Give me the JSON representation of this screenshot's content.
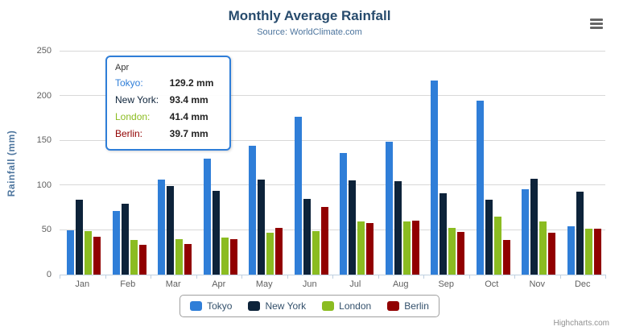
{
  "header": {
    "title": "Monthly Average Rainfall",
    "subtitle": "Source: WorldClimate.com"
  },
  "axes": {
    "y_title": "Rainfall (mm)",
    "y_ticks": [
      0,
      50,
      100,
      150,
      200,
      250
    ]
  },
  "chart_data": {
    "type": "bar",
    "title": "Monthly Average Rainfall",
    "subtitle": "Source: WorldClimate.com",
    "xlabel": "",
    "ylabel": "Rainfall (mm)",
    "ylim": [
      0,
      250
    ],
    "grid": true,
    "legend_position": "bottom",
    "categories": [
      "Jan",
      "Feb",
      "Mar",
      "Apr",
      "May",
      "Jun",
      "Jul",
      "Aug",
      "Sep",
      "Oct",
      "Nov",
      "Dec"
    ],
    "series": [
      {
        "name": "Tokyo",
        "color": "#2f7ed8",
        "values": [
          49.9,
          71.5,
          106.4,
          129.2,
          144.0,
          176.0,
          135.6,
          148.5,
          216.4,
          194.1,
          95.6,
          54.4
        ]
      },
      {
        "name": "New York",
        "color": "#0d233a",
        "values": [
          83.6,
          78.8,
          98.5,
          93.4,
          106.0,
          84.5,
          105.0,
          104.3,
          91.2,
          83.5,
          106.6,
          92.3
        ]
      },
      {
        "name": "London",
        "color": "#8bbc21",
        "values": [
          48.9,
          38.8,
          39.3,
          41.4,
          47.0,
          48.3,
          59.0,
          59.6,
          52.4,
          65.2,
          59.3,
          51.2
        ]
      },
      {
        "name": "Berlin",
        "color": "#910000",
        "values": [
          42.4,
          33.2,
          34.5,
          39.7,
          52.6,
          75.5,
          57.4,
          60.4,
          47.6,
          39.1,
          46.8,
          51.1
        ]
      }
    ]
  },
  "tooltip": {
    "header": "Apr",
    "rows": [
      {
        "label": "Tokyo:",
        "value": "129.2 mm",
        "color": "#2f7ed8"
      },
      {
        "label": "New York:",
        "value": "93.4 mm",
        "color": "#0d233a"
      },
      {
        "label": "London:",
        "value": "41.4 mm",
        "color": "#8bbc21"
      },
      {
        "label": "Berlin:",
        "value": "39.7 mm",
        "color": "#910000"
      }
    ]
  },
  "legend": {
    "items": [
      {
        "label": "Tokyo",
        "color": "#2f7ed8"
      },
      {
        "label": "New York",
        "color": "#0d233a"
      },
      {
        "label": "London",
        "color": "#8bbc21"
      },
      {
        "label": "Berlin",
        "color": "#910000"
      }
    ]
  },
  "credits": "Highcharts.com",
  "colors": {
    "title": "#274b6d",
    "subtitle": "#4d759e",
    "axis_labels": "#606060",
    "axis_line": "#c0d0e0",
    "gridline": "#d8d8d8",
    "tooltip_border": "#2f7ed8"
  }
}
